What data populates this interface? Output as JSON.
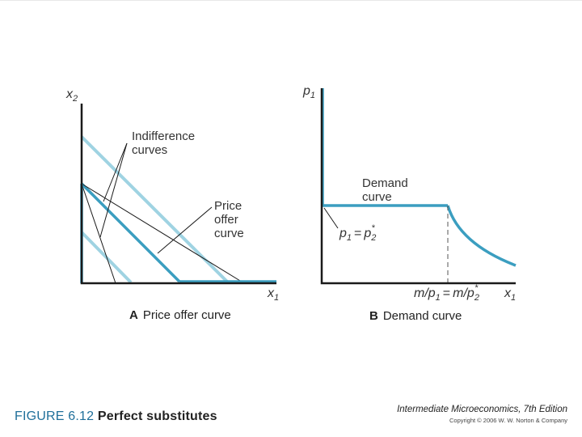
{
  "panel_a": {
    "y_axis": "x",
    "y_axis_sub": "2",
    "x_axis": "x",
    "x_axis_sub": "1",
    "indiff_label": [
      "Indifference",
      "curves"
    ],
    "offer_label": [
      "Price",
      "offer",
      "curve"
    ],
    "caption_letter": "A",
    "caption_text": "Price offer curve"
  },
  "panel_b": {
    "y_axis": "p",
    "y_axis_sub": "1",
    "x_axis": "x",
    "x_axis_sub": "1",
    "demand_label": [
      "Demand",
      "curve"
    ],
    "price_label": {
      "lhs": "p",
      "lhs_sub": "1",
      "eq": "=",
      "rhs": "p",
      "rhs_sub": "2",
      "rhs_sup": "*"
    },
    "tick_label": {
      "m1": "m/p",
      "m1_sub": "1",
      "eq": "=",
      "m2": "m/p",
      "m2_sub": "2",
      "m2_sup": "*"
    },
    "caption_letter": "B",
    "caption_text": "Demand curve"
  },
  "footer": {
    "figure_number": "FIGURE 6.12",
    "figure_title": "Perfect substitutes",
    "book_title": "Intermediate Microeconomics, 7th Edition",
    "copyright": "Copyright © 2006 W. W. Norton & Company"
  },
  "colors": {
    "indifference": "#9fd3e2",
    "highlight": "#3b9ec0",
    "axis": "#1a1a1a",
    "figure_label": "#1f6f9a"
  }
}
